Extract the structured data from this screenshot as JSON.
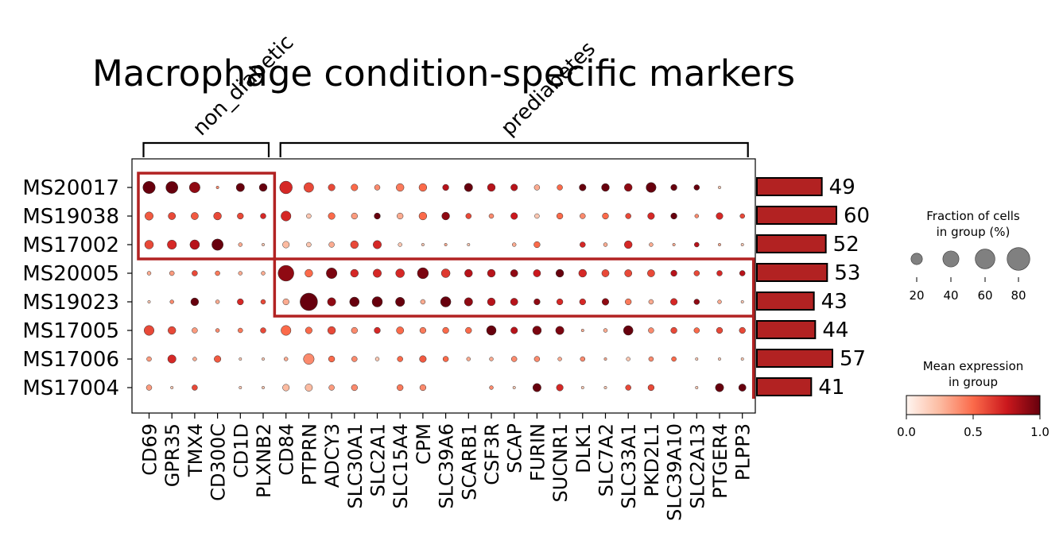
{
  "chart_data": {
    "type": "dotplot",
    "title": "Macrophage condition-specific markers",
    "rows": [
      "MS20017",
      "MS19038",
      "MS17002",
      "MS20005",
      "MS19023",
      "MS17005",
      "MS17006",
      "MS17004"
    ],
    "columns": [
      "CD69",
      "GPR35",
      "TMX4",
      "CD300C",
      "CD1D",
      "PLXNB2",
      "CD84",
      "PTPRN",
      "ADCY3",
      "SLC30A1",
      "SLC2A1",
      "SLC15A4",
      "CPM",
      "SLC39A6",
      "SCARB1",
      "CSF3R",
      "SCAP",
      "FURIN",
      "SUCNR1",
      "DLK1",
      "SLC7A2",
      "SLC33A1",
      "PKD2L1",
      "SLC39A10",
      "SLC2A13",
      "PTGER4",
      "PLPP3"
    ],
    "column_groups": [
      {
        "label": "non_diabetic",
        "start": 0,
        "end": 5,
        "rows": [
          0,
          2
        ]
      },
      {
        "label": "prediabetes",
        "start": 6,
        "end": 26,
        "rows": [
          3,
          4
        ]
      }
    ],
    "fraction": [
      [
        40,
        38,
        30,
        2,
        18,
        16,
        42,
        25,
        12,
        12,
        8,
        16,
        16,
        10,
        18,
        16,
        12,
        8,
        8,
        12,
        16,
        16,
        26,
        10,
        8,
        2,
        0
      ],
      [
        18,
        14,
        14,
        16,
        10,
        8,
        26,
        6,
        12,
        10,
        10,
        10,
        16,
        16,
        8,
        6,
        12,
        6,
        10,
        8,
        10,
        8,
        12,
        10,
        4,
        12,
        6
      ],
      [
        20,
        22,
        24,
        34,
        4,
        2,
        12,
        6,
        8,
        16,
        18,
        4,
        2,
        2,
        2,
        0,
        4,
        10,
        0,
        8,
        4,
        16,
        4,
        2,
        6,
        2,
        2
      ],
      [
        4,
        6,
        8,
        6,
        4,
        4,
        65,
        16,
        30,
        16,
        18,
        20,
        32,
        20,
        16,
        16,
        14,
        14,
        16,
        16,
        14,
        14,
        14,
        10,
        8,
        8,
        8
      ],
      [
        2,
        4,
        16,
        4,
        10,
        6,
        10,
        80,
        18,
        24,
        28,
        22,
        6,
        28,
        18,
        16,
        14,
        10,
        10,
        10,
        12,
        10,
        6,
        12,
        8,
        4,
        2
      ],
      [
        26,
        16,
        8,
        4,
        6,
        8,
        26,
        12,
        16,
        10,
        10,
        14,
        10,
        10,
        10,
        24,
        12,
        20,
        18,
        2,
        4,
        24,
        8,
        10,
        8,
        10,
        10
      ],
      [
        6,
        18,
        4,
        12,
        2,
        2,
        4,
        30,
        10,
        8,
        4,
        8,
        12,
        8,
        4,
        4,
        8,
        8,
        4,
        6,
        2,
        4,
        6,
        6,
        2,
        2,
        2
      ],
      [
        8,
        2,
        8,
        0,
        2,
        2,
        12,
        14,
        8,
        10,
        0,
        10,
        10,
        0,
        0,
        4,
        2,
        18,
        12,
        2,
        2,
        8,
        10,
        0,
        2,
        18,
        14
      ]
    ],
    "expression": [
      [
        1.0,
        1.0,
        0.9,
        0.4,
        1.0,
        1.0,
        0.7,
        0.6,
        0.6,
        0.5,
        0.4,
        0.45,
        0.5,
        0.8,
        1.0,
        0.8,
        0.8,
        0.3,
        0.5,
        1.0,
        1.0,
        0.9,
        1.0,
        1.0,
        1.0,
        0.2,
        0.0
      ],
      [
        0.55,
        0.6,
        0.55,
        0.6,
        0.6,
        0.7,
        0.7,
        0.2,
        0.5,
        0.35,
        1.0,
        0.3,
        0.5,
        0.9,
        0.6,
        0.4,
        0.75,
        0.2,
        0.5,
        0.4,
        0.5,
        0.6,
        0.7,
        1.0,
        0.4,
        0.7,
        0.6
      ],
      [
        0.6,
        0.7,
        0.8,
        1.0,
        0.3,
        0.2,
        0.25,
        0.2,
        0.3,
        0.6,
        0.7,
        0.2,
        0.2,
        0.3,
        0.2,
        0.0,
        0.3,
        0.5,
        0.0,
        0.7,
        0.3,
        0.7,
        0.3,
        0.3,
        0.8,
        0.3,
        0.2
      ],
      [
        0.3,
        0.35,
        0.6,
        0.45,
        0.3,
        0.3,
        0.9,
        0.5,
        0.95,
        0.7,
        0.7,
        0.7,
        0.95,
        0.65,
        0.8,
        0.8,
        0.9,
        0.75,
        1.0,
        0.7,
        0.6,
        0.6,
        0.6,
        0.8,
        0.6,
        0.7,
        0.8
      ],
      [
        0.2,
        0.4,
        1.0,
        0.3,
        0.7,
        0.6,
        0.3,
        1.0,
        0.9,
        1.0,
        1.0,
        1.0,
        0.3,
        1.0,
        0.9,
        0.8,
        0.8,
        0.9,
        0.7,
        0.7,
        0.9,
        0.45,
        0.3,
        0.7,
        0.9,
        0.3,
        0.2
      ],
      [
        0.6,
        0.6,
        0.35,
        0.4,
        0.45,
        0.6,
        0.5,
        0.5,
        0.6,
        0.4,
        0.7,
        0.5,
        0.45,
        0.5,
        0.5,
        1.0,
        0.8,
        0.95,
        0.95,
        0.3,
        0.3,
        1.0,
        0.4,
        0.6,
        0.5,
        0.6,
        0.6
      ],
      [
        0.35,
        0.7,
        0.3,
        0.55,
        0.2,
        0.2,
        0.3,
        0.4,
        0.5,
        0.4,
        0.2,
        0.5,
        0.55,
        0.5,
        0.3,
        0.3,
        0.4,
        0.4,
        0.3,
        0.4,
        0.3,
        0.2,
        0.4,
        0.5,
        0.2,
        0.2,
        0.2
      ],
      [
        0.35,
        0.2,
        0.6,
        0.0,
        0.2,
        0.2,
        0.25,
        0.25,
        0.35,
        0.4,
        0.0,
        0.45,
        0.4,
        0.0,
        0.0,
        0.4,
        0.2,
        1.0,
        0.7,
        0.2,
        0.2,
        0.6,
        0.6,
        0.0,
        0.2,
        1.0,
        1.0
      ]
    ],
    "row_totals": [
      49,
      60,
      52,
      53,
      43,
      44,
      57,
      41
    ],
    "row_totals_max": 60,
    "legend_size": {
      "title": [
        "Fraction of cells",
        "in group (%)"
      ],
      "values": [
        20,
        40,
        60,
        80
      ],
      "labels": [
        "20",
        "40",
        "60",
        "80"
      ]
    },
    "legend_color": {
      "title": [
        "Mean expression",
        "in group"
      ],
      "ticks": [
        0.0,
        0.5,
        1.0
      ],
      "labels": [
        "0.0",
        "0.5",
        "1.0"
      ],
      "colormap": "Reds"
    },
    "highlight_color": "#b22222",
    "bar_color": "#b22222"
  }
}
